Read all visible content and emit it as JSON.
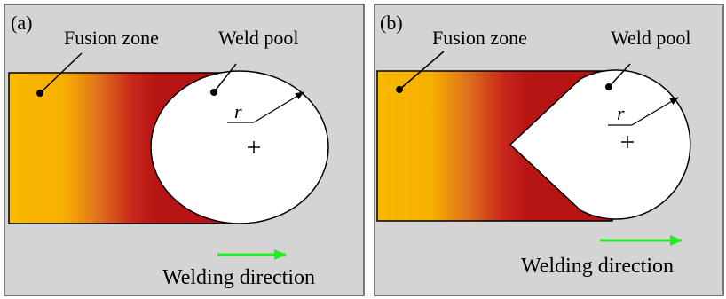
{
  "panels": [
    {
      "label": "(a)",
      "fusion_zone": "Fusion zone",
      "weld_pool": "Weld pool",
      "radius": "r",
      "direction": "Welding direction"
    },
    {
      "label": "(b)",
      "fusion_zone": "Fusion zone",
      "weld_pool": "Weld pool",
      "radius": "r",
      "direction": "Welding direction"
    }
  ]
}
